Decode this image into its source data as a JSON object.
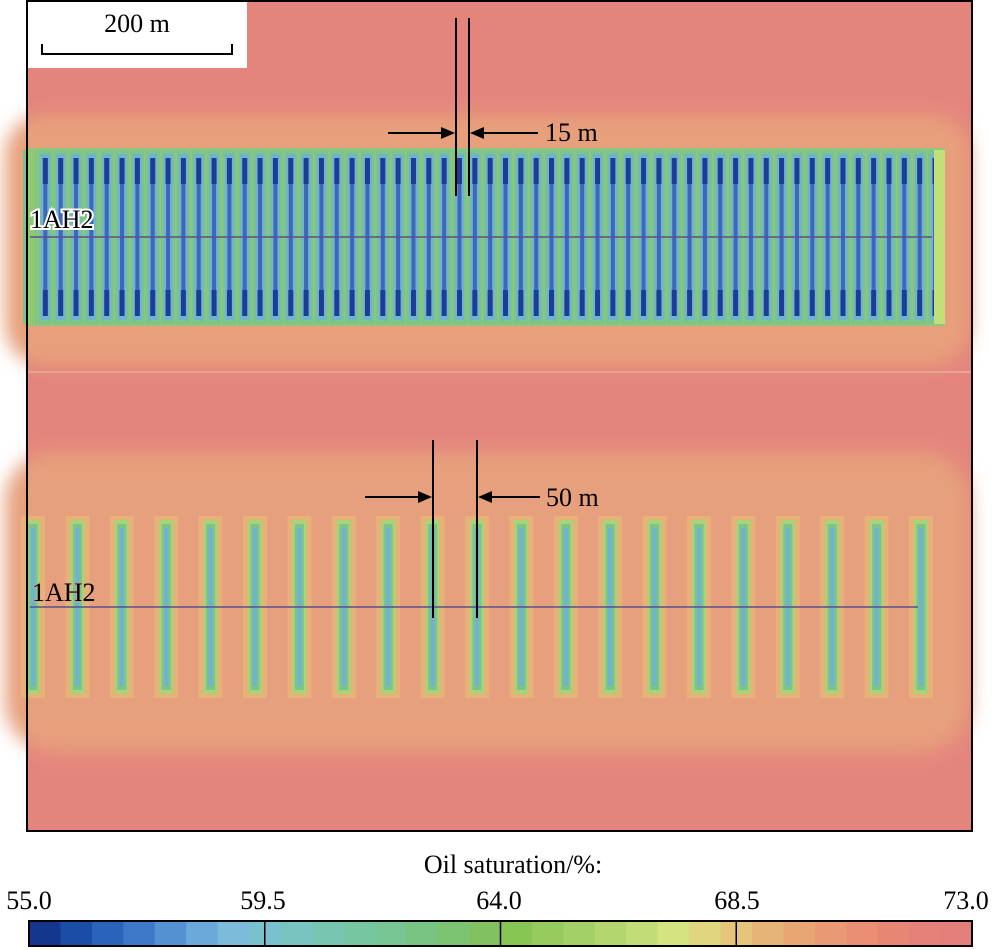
{
  "scale_bar": {
    "label": "200 m"
  },
  "top_panel": {
    "well_label": "1AH2",
    "spacing_label": "15 m",
    "fracture_count": 60
  },
  "bottom_panel": {
    "well_label": "1AH2",
    "spacing_label": "50 m",
    "fracture_count": 21
  },
  "colorbar": {
    "title": "Oil saturation/%:",
    "ticks": [
      "55.0",
      "59.5",
      "64.0",
      "68.5",
      "73.0"
    ],
    "min": 55.0,
    "max": 73.0,
    "colors": [
      "#14368c",
      "#1a4ea6",
      "#2a63bb",
      "#3d79c8",
      "#5491d2",
      "#6aa9da",
      "#7cbcda",
      "#79c1cc",
      "#78c4c0",
      "#77c6b2",
      "#76c6a2",
      "#76c592",
      "#78c583",
      "#7cc472",
      "#82c160",
      "#88c653",
      "#96cb5e",
      "#a4d167",
      "#b3d76e",
      "#c2dd77",
      "#d5e380",
      "#e0d67f",
      "#e4c57a",
      "#e6b476",
      "#e8a673",
      "#e99a72",
      "#ea8f73",
      "#e88674",
      "#e68179",
      "#e47f7c"
    ]
  },
  "colors": {
    "background": "#e4857d",
    "halo": "#e7a17d",
    "frac_far": "#a8d378",
    "frac_edge": "#7dc48a",
    "frac_mid": "#6fb2d2",
    "frac_core": "#3f66b8",
    "frac_tip": "#1c3d95",
    "well_line": "#5b4f8f"
  }
}
